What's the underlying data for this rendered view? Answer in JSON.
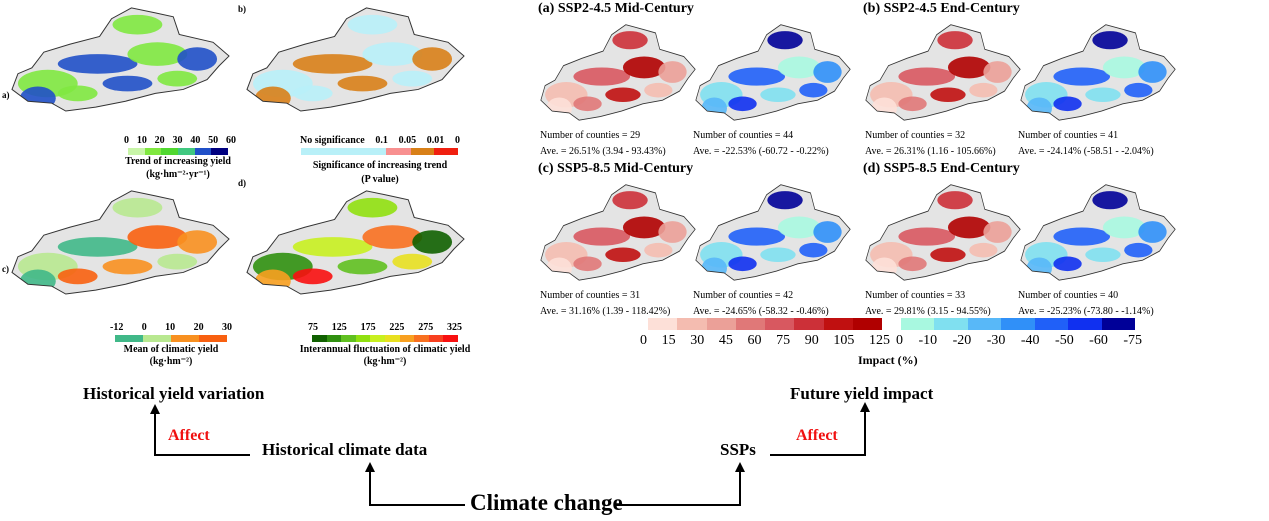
{
  "left_panels": {
    "a": {
      "label": "a)",
      "ticks": [
        "0",
        "10",
        "20",
        "30",
        "40",
        "50",
        "60"
      ],
      "colors": [
        "#c8f5a8",
        "#80e840",
        "#50d830",
        "#40c880",
        "#2050c8",
        "#000080"
      ],
      "title": "Trend of increasing yield",
      "unit": "(kg·hm⁻²·yr⁻¹)"
    },
    "b": {
      "label": "b)",
      "ticks": [
        "No significance",
        "0.1",
        "0.05",
        "0.01",
        "0"
      ],
      "colors": [
        "#b8f0f8",
        "#b8f0f8",
        "#b8f0f8",
        "#f89090",
        "#d88018",
        "#f02010"
      ],
      "title": "Significance of increasing trend",
      "unit": "(P value)"
    },
    "c": {
      "label": "c)",
      "ticks": [
        "-12",
        "0",
        "10",
        "20",
        "30"
      ],
      "colors": [
        "#40b888",
        "#b8e890",
        "#f89020",
        "#f86010"
      ],
      "title": "Mean of climatic yield",
      "unit": "(kg·hm⁻²)"
    },
    "d": {
      "label": "d)",
      "ticks": [
        "75",
        "125",
        "175",
        "225",
        "275",
        "325"
      ],
      "colors": [
        "#106000",
        "#309010",
        "#60c020",
        "#90e010",
        "#c8f020",
        "#e8e020",
        "#f8a020",
        "#f87020",
        "#f84020",
        "#f81010"
      ],
      "title": "Interannual fluctuation of climatic yield",
      "unit": "(kg·hm⁻²)"
    }
  },
  "right_panels": [
    {
      "title": "(a) SSP2-4.5 Mid-Century",
      "pos": {
        "counties": "Number of counties = 29",
        "ave": "Ave.  = 26.51% (3.94 - 93.43%)"
      },
      "neg": {
        "counties": "Number of counties = 44",
        "ave": "Ave.  = -22.53% (-60.72 - -0.22%)"
      }
    },
    {
      "title": "(b) SSP2-4.5 End-Century",
      "pos": {
        "counties": "Number of counties = 32",
        "ave": "Ave.  = 26.31% (1.16 - 105.66%)"
      },
      "neg": {
        "counties": "Number of counties = 41",
        "ave": "Ave.  = -24.14% (-58.51 - -2.04%)"
      }
    },
    {
      "title": "(c) SSP5-8.5 Mid-Century",
      "pos": {
        "counties": "Number of counties = 31",
        "ave": "Ave.  = 31.16% (1.39 - 118.42%)"
      },
      "neg": {
        "counties": "Number of counties = 42",
        "ave": "Ave.  = -24.65% (-58.32 - -0.46%)"
      }
    },
    {
      "title": "(d) SSP5-8.5 End-Century",
      "pos": {
        "counties": "Number of counties = 33",
        "ave": "Ave.  = 29.81% (3.15 - 94.55%)"
      },
      "neg": {
        "counties": "Number of counties = 40",
        "ave": "Ave.  = -25.23% (-73.80 - -1.14%)"
      }
    }
  ],
  "impact_legend": {
    "pos_ticks": [
      "0",
      "15",
      "30",
      "45",
      "60",
      "75",
      "90",
      "105",
      "125"
    ],
    "pos_colors": [
      "#fde0d8",
      "#f4bcb0",
      "#eba098",
      "#e07878",
      "#d85860",
      "#cc3038",
      "#c01010",
      "#b00000"
    ],
    "neg_ticks": [
      "0",
      "-10",
      "-20",
      "-30",
      "-40",
      "-50",
      "-60",
      "-75"
    ],
    "neg_colors": [
      "#a8f8e0",
      "#80e0f0",
      "#58b8f8",
      "#3090f8",
      "#2060f8",
      "#1030f0",
      "#000098"
    ],
    "title": "Impact (%)"
  },
  "flow": {
    "hist_var": "Historical yield variation",
    "future": "Future yield impact",
    "affect_left": "Affect",
    "affect_right": "Affect",
    "hist_climate": "Historical climate data",
    "ssps": "SSPs",
    "climate_change": "Climate change"
  }
}
